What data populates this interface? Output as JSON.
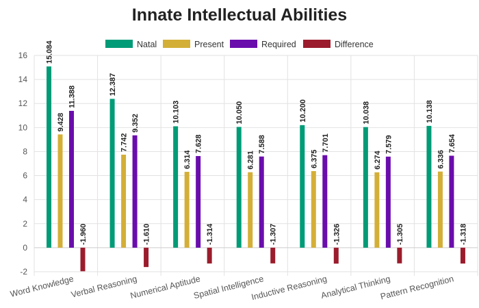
{
  "chart_data": {
    "type": "bar",
    "title": "Innate Intellectual Abilities",
    "xlabel": "",
    "ylabel": "",
    "ylim": [
      -2,
      16
    ],
    "yticks": [
      -2,
      0,
      2,
      4,
      6,
      8,
      10,
      12,
      14,
      16
    ],
    "grid": true,
    "legend_position": "top",
    "categories": [
      "Word Knowledge",
      "Verbal Reasoning",
      "Numerical Aptitude",
      "Spatial Intelligence",
      "Inductive Reasoning",
      "Analytical Thinking",
      "Pattern Recognition"
    ],
    "series": [
      {
        "name": "Natal",
        "color": "#009b77",
        "values": [
          15.084,
          12.387,
          10.103,
          10.05,
          10.2,
          10.038,
          10.138
        ],
        "labels": [
          "15.084",
          "12.387",
          "10.103",
          "10.050",
          "10.200",
          "10.038",
          "10.138"
        ]
      },
      {
        "name": "Present",
        "color": "#d4af37",
        "values": [
          9.428,
          7.742,
          6.314,
          6.281,
          6.375,
          6.274,
          6.336
        ],
        "labels": [
          "9.428",
          "7.742",
          "6.314",
          "6.281",
          "6.375",
          "6.274",
          "6.336"
        ]
      },
      {
        "name": "Required",
        "color": "#6a0dad",
        "values": [
          11.388,
          9.352,
          7.628,
          7.588,
          7.701,
          7.579,
          7.654
        ],
        "labels": [
          "11.388",
          "9.352",
          "7.628",
          "7.588",
          "7.701",
          "7.579",
          "7.654"
        ]
      },
      {
        "name": "Difference",
        "color": "#9b1c2c",
        "values": [
          -1.96,
          -1.61,
          -1.314,
          -1.307,
          -1.326,
          -1.305,
          -1.318
        ],
        "labels": [
          "-1.960",
          "-1.610",
          "-1.314",
          "-1.307",
          "-1.326",
          "-1.305",
          "-1.318"
        ]
      }
    ]
  }
}
